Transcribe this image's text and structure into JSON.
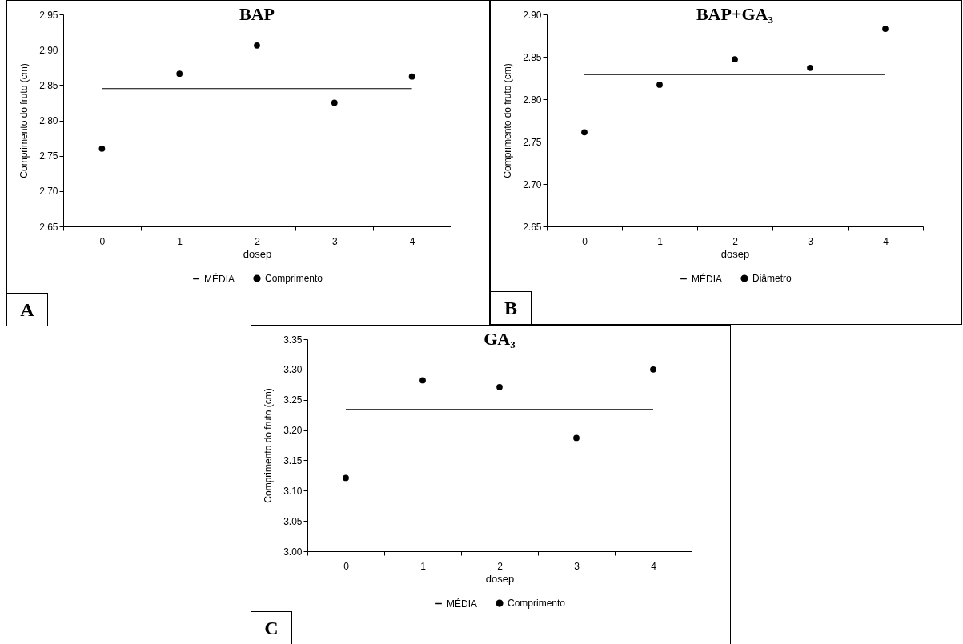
{
  "chart_data": [
    {
      "type": "scatter",
      "title": "BAP",
      "xlabel": "dosep",
      "ylabel": "Comprimento do fruto (cm)",
      "categories": [
        "0",
        "1",
        "2",
        "3",
        "4"
      ],
      "ylim": [
        2.65,
        2.95
      ],
      "yticks": [
        2.65,
        {
          "value": 2.7,
          "label": "2.70"
        },
        2.75,
        {
          "value": 2.8,
          "label": "2.80"
        },
        2.85,
        {
          "value": 2.9,
          "label": "2.90"
        },
        2.95
      ],
      "legend": "bottom",
      "annotations": [
        "A"
      ],
      "series": [
        {
          "name": "MÉDIA",
          "type": "line",
          "marker": "none",
          "color": "#000000",
          "values": [
            2.845,
            2.845,
            2.845,
            2.845,
            2.845
          ]
        },
        {
          "name": "Comprimento",
          "marker": "circle",
          "color": "#000000",
          "values": [
            2.76,
            2.866,
            2.906,
            2.825,
            2.862
          ]
        }
      ]
    },
    {
      "type": "scatter",
      "title": "BAP+GA₃",
      "xlabel": "dosep",
      "ylabel": "Comprimento do fruto (cm)",
      "categories": [
        "0",
        "1",
        "2",
        "3",
        "4"
      ],
      "ylim": [
        2.65,
        2.9
      ],
      "yticks": [
        2.65,
        {
          "value": 2.7,
          "label": "2.70"
        },
        2.75,
        {
          "value": 2.8,
          "label": "2.80"
        },
        2.85,
        {
          "value": 2.9,
          "label": "2.90"
        }
      ],
      "legend": "bottom",
      "annotations": [
        "B"
      ],
      "series": [
        {
          "name": "MÉDIA",
          "type": "line",
          "marker": "none",
          "color": "#000000",
          "values": [
            2.829,
            2.829,
            2.829,
            2.829,
            2.829
          ]
        },
        {
          "name": "Diâmetro",
          "marker": "circle",
          "color": "#000000",
          "values": [
            2.761,
            2.817,
            2.847,
            2.837,
            2.883
          ]
        }
      ]
    },
    {
      "type": "scatter",
      "title": "GA₃",
      "xlabel": "dosep",
      "ylabel": "Comprimento do fruto (cm)",
      "categories": [
        "0",
        "1",
        "2",
        "3",
        "4"
      ],
      "ylim": [
        3.0,
        3.35
      ],
      "yticks": [
        {
          "value": 3.0,
          "label": "3.00"
        },
        3.05,
        {
          "value": 3.1,
          "label": "3.10"
        },
        3.15,
        {
          "value": 3.2,
          "label": "3.20"
        },
        3.25,
        {
          "value": 3.3,
          "label": "3.30"
        },
        3.35
      ],
      "legend": "bottom",
      "annotations": [
        "C"
      ],
      "series": [
        {
          "name": "MÉDIA",
          "type": "line",
          "marker": "none",
          "color": "#000000",
          "values": [
            3.234,
            3.234,
            3.234,
            3.234,
            3.234
          ]
        },
        {
          "name": "Comprimento",
          "marker": "circle",
          "color": "#000000",
          "values": [
            3.121,
            3.282,
            3.271,
            3.187,
            3.3
          ]
        }
      ]
    }
  ]
}
